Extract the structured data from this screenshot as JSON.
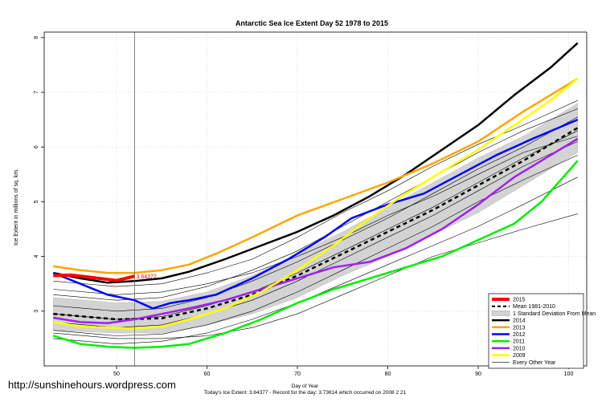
{
  "chart_data": {
    "type": "line",
    "title": "Antarctic Sea Ice Extent Day 52 1978 to 2015",
    "xlabel": "Day of Year",
    "ylabel": "Ice Extent in millions of sq. km.",
    "xlim": [
      42,
      102
    ],
    "ylim": [
      2.0,
      8.1
    ],
    "xticks": [
      50,
      60,
      70,
      80,
      90,
      100
    ],
    "yticks": [
      3,
      4,
      5,
      6,
      7,
      8
    ],
    "grid": true,
    "legend_position": "bottom-right",
    "current_day": 52,
    "current_value_label": "3.64377",
    "mean": {
      "name": "Mean 1981-2010",
      "x": [
        43,
        50,
        55,
        60,
        65,
        70,
        75,
        80,
        85,
        90,
        95,
        101
      ],
      "y": [
        2.95,
        2.85,
        2.87,
        3.05,
        3.3,
        3.65,
        4.05,
        4.45,
        4.85,
        5.3,
        5.75,
        6.35
      ]
    },
    "std_band": {
      "name": "1 Standard Deviation From Mean",
      "x": [
        43,
        50,
        55,
        60,
        65,
        70,
        75,
        80,
        85,
        90,
        95,
        101
      ],
      "upper": [
        3.25,
        3.15,
        3.18,
        3.35,
        3.65,
        4.05,
        4.45,
        4.9,
        5.35,
        5.8,
        6.2,
        6.8
      ],
      "lower": [
        2.65,
        2.6,
        2.6,
        2.75,
        2.95,
        3.25,
        3.65,
        4.0,
        4.4,
        4.8,
        5.3,
        5.9
      ]
    },
    "series": [
      {
        "name": "2015",
        "color": "#ff0000",
        "width": 4,
        "x": [
          43,
          45,
          47,
          49,
          50,
          51,
          52
        ],
        "y": [
          3.65,
          3.66,
          3.62,
          3.58,
          3.56,
          3.6,
          3.64
        ]
      },
      {
        "name": "2014",
        "color": "#000000",
        "width": 2.5,
        "x": [
          43,
          46,
          49,
          52,
          55,
          58,
          62,
          66,
          70,
          74,
          78,
          82,
          86,
          90,
          94,
          98,
          101
        ],
        "y": [
          3.7,
          3.6,
          3.52,
          3.55,
          3.6,
          3.72,
          3.95,
          4.2,
          4.45,
          4.75,
          5.1,
          5.5,
          5.95,
          6.4,
          6.95,
          7.45,
          7.9
        ]
      },
      {
        "name": "2013",
        "color": "#ffa500",
        "width": 2.5,
        "x": [
          43,
          46,
          49,
          52,
          55,
          58,
          61,
          65,
          70,
          75,
          80,
          85,
          90,
          95,
          101
        ],
        "y": [
          3.82,
          3.75,
          3.7,
          3.7,
          3.75,
          3.85,
          4.05,
          4.35,
          4.75,
          5.05,
          5.35,
          5.7,
          6.1,
          6.65,
          7.25
        ]
      },
      {
        "name": "2012",
        "color": "#0000ff",
        "width": 2.5,
        "x": [
          43,
          46,
          49,
          52,
          54,
          56,
          58,
          61,
          65,
          69,
          73,
          76,
          80,
          84,
          88,
          92,
          96,
          101
        ],
        "y": [
          3.7,
          3.5,
          3.3,
          3.2,
          3.05,
          3.15,
          3.2,
          3.3,
          3.6,
          3.95,
          4.35,
          4.7,
          4.95,
          5.15,
          5.5,
          5.85,
          6.15,
          6.5
        ]
      },
      {
        "name": "2011",
        "color": "#00ee00",
        "width": 2.5,
        "x": [
          43,
          46,
          49,
          52,
          55,
          58,
          62,
          66,
          70,
          74,
          78,
          82,
          86,
          90,
          94,
          97,
          101
        ],
        "y": [
          2.55,
          2.4,
          2.35,
          2.33,
          2.35,
          2.4,
          2.6,
          2.85,
          3.15,
          3.4,
          3.6,
          3.8,
          4.0,
          4.3,
          4.6,
          5.0,
          5.75
        ]
      },
      {
        "name": "2010",
        "color": "#a020f0",
        "width": 2.5,
        "x": [
          43,
          46,
          49,
          52,
          55,
          58,
          62,
          66,
          70,
          74,
          78,
          82,
          86,
          90,
          94,
          98,
          101
        ],
        "y": [
          2.88,
          2.8,
          2.78,
          2.85,
          2.95,
          3.05,
          3.2,
          3.4,
          3.6,
          3.8,
          3.9,
          4.15,
          4.5,
          4.95,
          5.45,
          5.85,
          6.15
        ]
      },
      {
        "name": "2009",
        "color": "#ffff00",
        "width": 2.5,
        "x": [
          43,
          46,
          49,
          52,
          55,
          58,
          62,
          66,
          70,
          74,
          78,
          82,
          86,
          90,
          94,
          98,
          101
        ],
        "y": [
          2.8,
          2.72,
          2.7,
          2.68,
          2.72,
          2.85,
          3.05,
          3.35,
          3.75,
          4.2,
          4.7,
          5.15,
          5.55,
          5.95,
          6.4,
          6.85,
          7.25
        ]
      }
    ],
    "other_years": {
      "name": "Every Other Year",
      "color": "#000000",
      "width": 0.6,
      "x": [
        43,
        50,
        55,
        60,
        65,
        70,
        75,
        80,
        85,
        90,
        95,
        101
      ],
      "y_list": [
        [
          3.55,
          3.45,
          3.5,
          3.7,
          3.95,
          4.35,
          4.8,
          5.2,
          5.65,
          6.05,
          6.4,
          6.85
        ],
        [
          3.3,
          3.2,
          3.25,
          3.45,
          3.75,
          4.1,
          4.55,
          5.0,
          5.45,
          5.9,
          6.3,
          6.7
        ],
        [
          3.1,
          3.0,
          3.05,
          3.25,
          3.55,
          3.9,
          4.3,
          4.7,
          5.15,
          5.6,
          6.0,
          6.55
        ],
        [
          2.95,
          2.85,
          2.9,
          3.1,
          3.35,
          3.7,
          4.1,
          4.5,
          4.9,
          5.35,
          5.8,
          6.3
        ],
        [
          2.8,
          2.7,
          2.75,
          2.95,
          3.2,
          3.55,
          3.95,
          4.35,
          4.75,
          5.2,
          5.65,
          6.1
        ],
        [
          2.65,
          2.55,
          2.58,
          2.75,
          3.0,
          3.35,
          3.75,
          4.15,
          4.55,
          5.0,
          5.4,
          5.85
        ],
        [
          2.5,
          2.4,
          2.45,
          2.6,
          2.85,
          3.15,
          3.5,
          3.85,
          4.2,
          4.55,
          4.95,
          5.45
        ],
        [
          2.6,
          2.5,
          2.5,
          2.55,
          2.7,
          2.95,
          3.3,
          3.65,
          4.0,
          4.25,
          4.5,
          4.78
        ],
        [
          3.4,
          3.3,
          3.35,
          3.5,
          3.7,
          4.0,
          4.35,
          4.75,
          5.1,
          5.5,
          5.9,
          6.2
        ]
      ]
    }
  },
  "footer": {
    "url": "http://sunshinehours.wordpress.com",
    "line1": "Day of Year",
    "line2": "Today's Ice Extent: 3.64377  - Record for the day: 3.73614 which occurred on 2008 2 21"
  }
}
